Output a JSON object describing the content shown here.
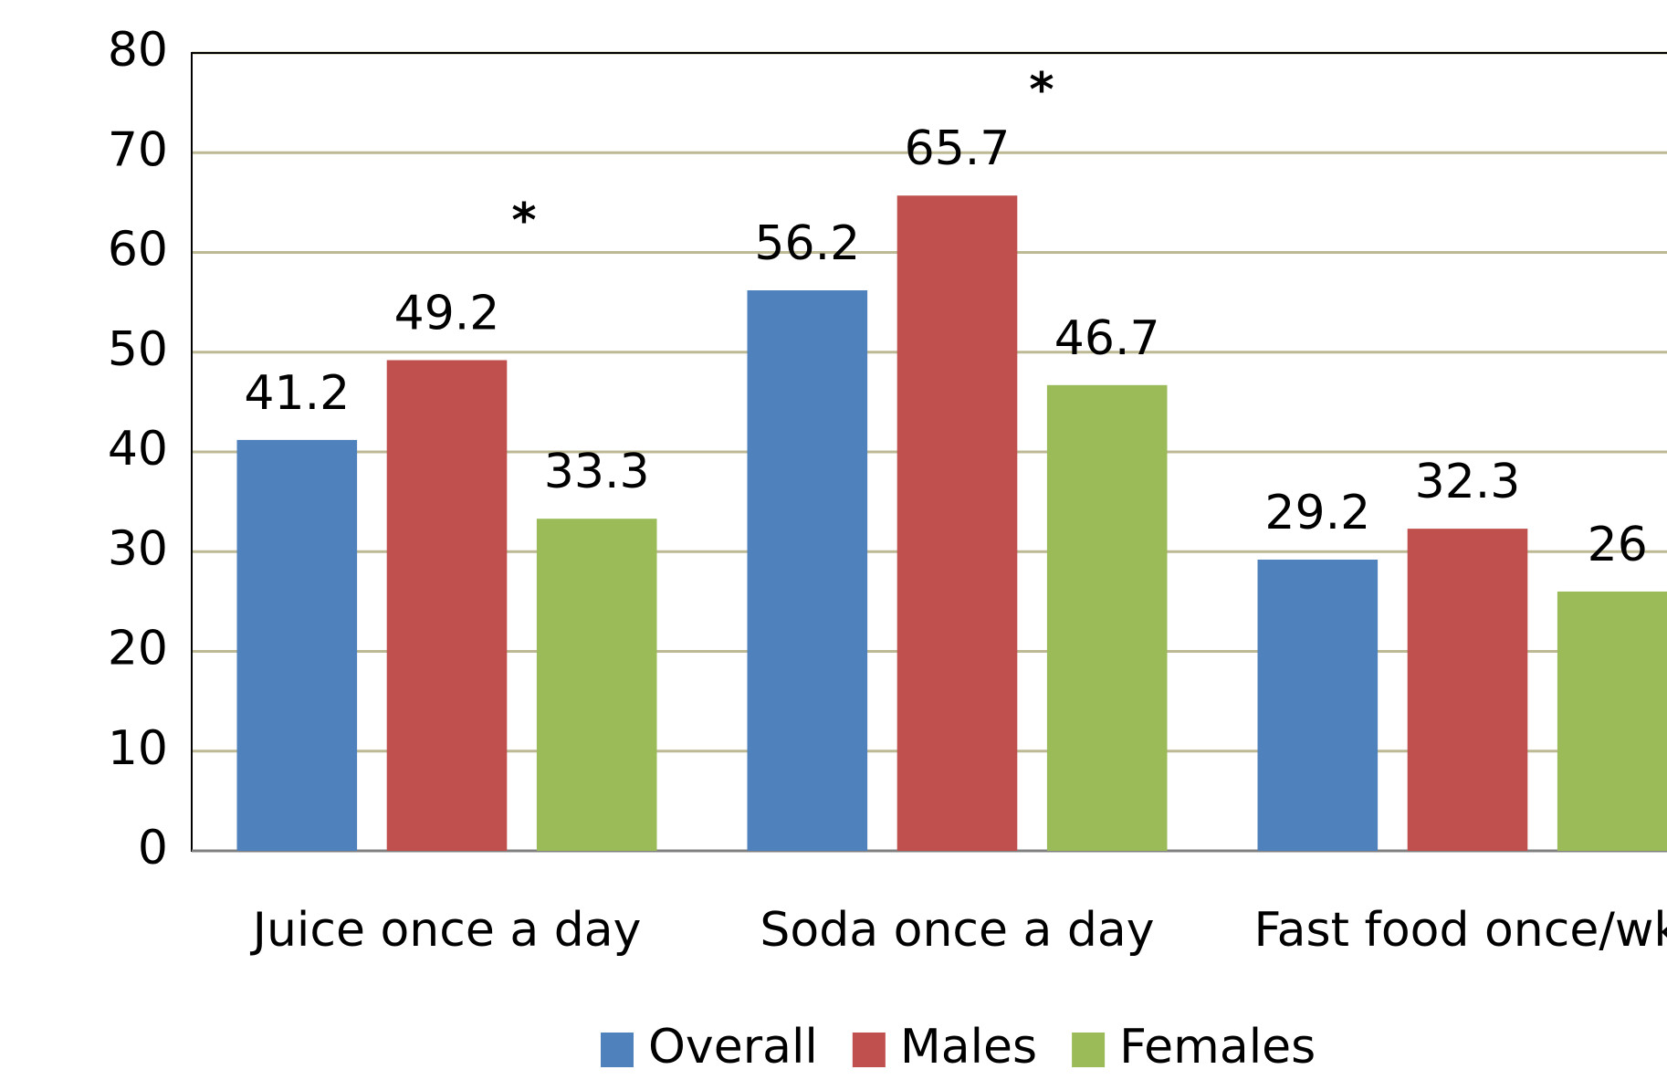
{
  "chart_data": {
    "type": "bar",
    "categories": [
      "Juice once a day",
      "Soda once a day",
      "Fast food once/wk"
    ],
    "series": [
      {
        "name": "Overall",
        "color": "#4f81bd",
        "values": [
          41.2,
          56.2,
          29.2
        ]
      },
      {
        "name": "Males",
        "color": "#c0504d",
        "values": [
          49.2,
          65.7,
          32.3
        ]
      },
      {
        "name": "Females",
        "color": "#9bbb59",
        "values": [
          33.3,
          46.7,
          26
        ]
      }
    ],
    "annotations": [
      {
        "text": "*"
      },
      {
        "text": "*"
      }
    ],
    "ylim": [
      0,
      80
    ],
    "yticks": [
      0,
      10,
      20,
      30,
      40,
      50,
      60,
      70,
      80
    ],
    "grid": true,
    "legend": "bottom"
  }
}
